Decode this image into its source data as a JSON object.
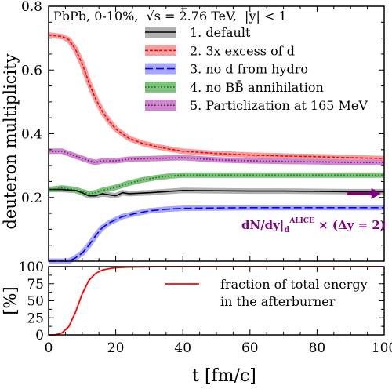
{
  "chart_data": [
    {
      "type": "line",
      "panel": "top",
      "header": {
        "system": "PbPb, 0-10%,",
        "energy_prefix": "√s = 2.76 TeV,",
        "rapidity": "|y| < 1"
      },
      "ylabel": "deuteron multiplicity",
      "xlim": [
        0,
        100
      ],
      "ylim": [
        0,
        0.8
      ],
      "yticks": [
        "0.2",
        "0.4",
        "0.6",
        "0.8"
      ],
      "series": [
        {
          "name": "1. default",
          "color": "#000000",
          "band": "#b0b0b0",
          "dash": "solid",
          "x": [
            0,
            4,
            8,
            10,
            12,
            14,
            16,
            20,
            22,
            24,
            30,
            40,
            50,
            60,
            70,
            80,
            90,
            100
          ],
          "y": [
            0.225,
            0.225,
            0.222,
            0.215,
            0.205,
            0.205,
            0.212,
            0.205,
            0.215,
            0.212,
            0.215,
            0.222,
            0.221,
            0.22,
            0.22,
            0.219,
            0.218,
            0.218
          ]
        },
        {
          "name": "2. 3x excess of d",
          "color": "#ff0000",
          "band": "#f4a0a0",
          "dash": "4,2",
          "x": [
            0,
            4,
            6,
            8,
            10,
            12,
            14,
            16,
            18,
            20,
            24,
            28,
            32,
            36,
            40,
            50,
            60,
            70,
            80,
            90,
            100
          ],
          "y": [
            0.71,
            0.705,
            0.695,
            0.665,
            0.62,
            0.56,
            0.51,
            0.47,
            0.44,
            0.415,
            0.385,
            0.37,
            0.36,
            0.352,
            0.345,
            0.338,
            0.333,
            0.33,
            0.328,
            0.325,
            0.322
          ]
        },
        {
          "name": "3. no d from hydro",
          "color": "#0000ff",
          "band": "#a8a8ff",
          "dash": "10,4",
          "x": [
            0,
            6,
            8,
            10,
            12,
            14,
            16,
            18,
            20,
            22,
            24,
            26,
            30,
            35,
            40,
            50,
            60,
            80,
            100
          ],
          "y": [
            0.0,
            0.0,
            0.01,
            0.025,
            0.05,
            0.08,
            0.105,
            0.12,
            0.13,
            0.14,
            0.145,
            0.15,
            0.158,
            0.163,
            0.166,
            0.167,
            0.168,
            0.168,
            0.168
          ]
        },
        {
          "name": "4. no BB̄ annihilation",
          "color": "#008000",
          "band": "#7fc07f",
          "dash": "1.5,2.5",
          "x": [
            0,
            4,
            8,
            10,
            12,
            14,
            16,
            20,
            24,
            28,
            32,
            36,
            40,
            50,
            60,
            70,
            80,
            90,
            100
          ],
          "y": [
            0.225,
            0.23,
            0.225,
            0.218,
            0.212,
            0.215,
            0.222,
            0.232,
            0.245,
            0.255,
            0.262,
            0.267,
            0.27,
            0.27,
            0.27,
            0.27,
            0.27,
            0.27,
            0.27
          ]
        },
        {
          "name": "5. Particlization at 165 MeV",
          "color": "#800080",
          "band": "#cc88cc",
          "dash": "1.5,2.5",
          "x": [
            0,
            4,
            8,
            12,
            14,
            16,
            20,
            24,
            30,
            40,
            50,
            60,
            70,
            80,
            90,
            100
          ],
          "y": [
            0.345,
            0.345,
            0.33,
            0.315,
            0.31,
            0.315,
            0.315,
            0.32,
            0.322,
            0.325,
            0.318,
            0.315,
            0.313,
            0.312,
            0.31,
            0.31
          ]
        }
      ],
      "alice": {
        "label_main": "dN/dy|",
        "label_sub": "d",
        "label_sup": "ALICE",
        "label_tail": " × (Δy = 2)",
        "color": "#800080",
        "x_from": 89,
        "x_to": 99,
        "y": 0.212
      }
    },
    {
      "type": "line",
      "panel": "bottom",
      "ylabel": "[%]",
      "xlabel": "t [fm/c]",
      "xlim": [
        0,
        100
      ],
      "ylim": [
        0,
        100
      ],
      "yticks": [
        "0",
        "25",
        "50",
        "75",
        "100"
      ],
      "xticks": [
        "0",
        "20",
        "40",
        "60",
        "80",
        "100"
      ],
      "series": [
        {
          "name": "fraction of total energy",
          "name_line2": "in the afterburner",
          "color": "#ff0000",
          "dash": "solid",
          "x": [
            0,
            2,
            4,
            6,
            8,
            10,
            12,
            14,
            16,
            18,
            20,
            24,
            28,
            32,
            40,
            50,
            100
          ],
          "y": [
            0,
            0,
            3,
            12,
            33,
            60,
            80,
            90,
            95,
            97,
            98.5,
            99.3,
            99.7,
            99.9,
            100,
            100,
            100
          ]
        }
      ]
    }
  ]
}
